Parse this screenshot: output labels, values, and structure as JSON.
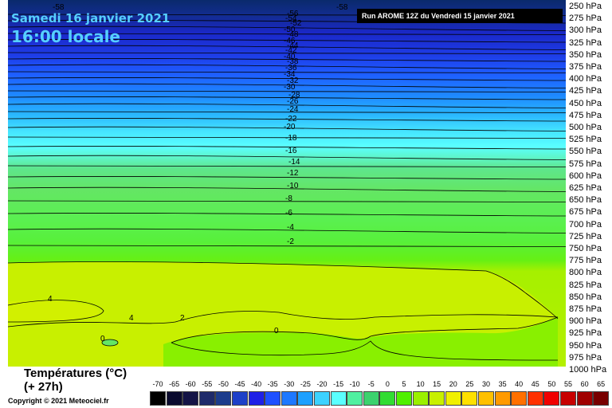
{
  "header": {
    "date_label": "Samedi 16 janvier 2021",
    "time_label": "16:00 locale",
    "run_label": "Run AROME 12Z du Vendredi 15 janvier 2021"
  },
  "pressure_levels": [
    "250 hPa",
    "275 hPa",
    "300 hPa",
    "325 hPa",
    "350 hPa",
    "375 hPa",
    "400 hPa",
    "425 hPa",
    "450 hPa",
    "475 hPa",
    "500 hPa",
    "525 hPa",
    "550 hPa",
    "575 hPa",
    "600 hPa",
    "625 hPa",
    "650 hPa",
    "675 hPa",
    "700 hPa",
    "725 hPa",
    "750 hPa",
    "775 hPa",
    "800 hPa",
    "825 hPa",
    "850 hPa",
    "875 hPa",
    "900 hPa",
    "925 hPa",
    "950 hPa",
    "975 hPa",
    "1000 hPa"
  ],
  "contour_labels": [
    {
      "text": "-58"
    },
    {
      "text": "-58"
    },
    {
      "text": "-56"
    },
    {
      "text": "-54"
    },
    {
      "text": "-52"
    },
    {
      "text": "-50"
    },
    {
      "text": "-48"
    },
    {
      "text": "-46"
    },
    {
      "text": "-44"
    },
    {
      "text": "-42"
    },
    {
      "text": "-40"
    },
    {
      "text": "-38"
    },
    {
      "text": "-36"
    },
    {
      "text": "-34"
    },
    {
      "text": "-32"
    },
    {
      "text": "-30"
    },
    {
      "text": "-28"
    },
    {
      "text": "-26"
    },
    {
      "text": "-24"
    },
    {
      "text": "-22"
    },
    {
      "text": "-20"
    },
    {
      "text": "-18"
    },
    {
      "text": "-16"
    },
    {
      "text": "-14"
    },
    {
      "text": "-12"
    },
    {
      "text": "-10"
    },
    {
      "text": "-8"
    },
    {
      "text": "-6"
    },
    {
      "text": "-4"
    },
    {
      "text": "-2"
    },
    {
      "text": "4"
    },
    {
      "text": "4"
    },
    {
      "text": "2"
    },
    {
      "text": "0"
    },
    {
      "text": "0"
    }
  ],
  "legend": {
    "title_line1": "Températures (°C)",
    "title_line2": "(+ 27h)",
    "copyright": "Copyright © 2021 Meteociel.fr"
  },
  "colorbar": {
    "labels": [
      "-70",
      "-65",
      "-60",
      "-55",
      "-50",
      "-45",
      "-40",
      "-35",
      "-30",
      "-25",
      "-20",
      "-15",
      "-10",
      "-5",
      "0",
      "5",
      "10",
      "15",
      "20",
      "25",
      "30",
      "35",
      "40",
      "45",
      "50",
      "55",
      "60",
      "65"
    ],
    "colors": [
      "#000000",
      "#0a0a2e",
      "#141446",
      "#1e2a6a",
      "#1c3c8c",
      "#1e40c8",
      "#1e20e6",
      "#1e50ff",
      "#1e78ff",
      "#1ea0ff",
      "#3cd2ff",
      "#5affff",
      "#50f0a0",
      "#3cd26e",
      "#32dc32",
      "#50f000",
      "#9af000",
      "#c8f000",
      "#f0f000",
      "#ffe000",
      "#ffc000",
      "#ff9a00",
      "#ff7000",
      "#ff3000",
      "#f00000",
      "#c80000",
      "#a00000",
      "#780000"
    ]
  },
  "colors": {
    "title_cyan": "#56cfff"
  }
}
